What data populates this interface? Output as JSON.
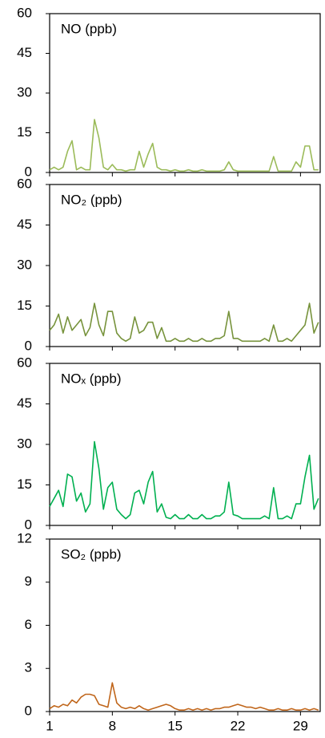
{
  "chart_data": [
    {
      "type": "line",
      "title": "NO (ppb)",
      "color": "#9bbb59",
      "x": [
        1,
        1.5,
        2,
        2.5,
        3,
        3.5,
        4,
        4.5,
        5,
        5.5,
        6,
        6.5,
        7,
        7.5,
        8,
        8.5,
        9,
        9.5,
        10,
        10.5,
        11,
        11.5,
        12,
        12.5,
        13,
        13.5,
        14,
        14.5,
        15,
        15.5,
        16,
        16.5,
        17,
        17.5,
        18,
        18.5,
        19,
        19.5,
        20,
        20.5,
        21,
        21.5,
        22,
        22.5,
        23,
        23.5,
        24,
        24.5,
        25,
        25.5,
        26,
        26.5,
        27,
        27.5,
        28,
        28.5,
        29,
        29.5,
        30,
        30.5,
        31
      ],
      "values": [
        1,
        2,
        1,
        2,
        8,
        12,
        1,
        2,
        1,
        1,
        20,
        13,
        2,
        1,
        3,
        1,
        1,
        0.5,
        1,
        1,
        8,
        2,
        7,
        11,
        2,
        1,
        1,
        0.5,
        1,
        0.5,
        0.5,
        1,
        0.5,
        0.5,
        1,
        0.5,
        0.5,
        0.5,
        0.5,
        1,
        4,
        1,
        0.5,
        0.5,
        0.5,
        0.5,
        0.5,
        0.5,
        0.5,
        0.5,
        6,
        0.5,
        0.5,
        0.5,
        0.5,
        4,
        2,
        10,
        10,
        1,
        1
      ],
      "xlim": [
        1,
        31.2
      ],
      "xticks": [
        1,
        8,
        15,
        22,
        29
      ],
      "ylim": [
        0,
        60
      ],
      "yticks": [
        0,
        15,
        30,
        45,
        60
      ]
    },
    {
      "type": "line",
      "title": "NO₂ (ppb)",
      "color": "#77933c",
      "x": [
        1,
        1.5,
        2,
        2.5,
        3,
        3.5,
        4,
        4.5,
        5,
        5.5,
        6,
        6.5,
        7,
        7.5,
        8,
        8.5,
        9,
        9.5,
        10,
        10.5,
        11,
        11.5,
        12,
        12.5,
        13,
        13.5,
        14,
        14.5,
        15,
        15.5,
        16,
        16.5,
        17,
        17.5,
        18,
        18.5,
        19,
        19.5,
        20,
        20.5,
        21,
        21.5,
        22,
        22.5,
        23,
        23.5,
        24,
        24.5,
        25,
        25.5,
        26,
        26.5,
        27,
        27.5,
        28,
        28.5,
        29,
        29.5,
        30,
        30.5,
        31
      ],
      "values": [
        6,
        8,
        12,
        5,
        11,
        6,
        8,
        10,
        4,
        7,
        16,
        8,
        4,
        13,
        13,
        5,
        3,
        2,
        3,
        11,
        5,
        6,
        9,
        9,
        3,
        7,
        2,
        2,
        3,
        2,
        2,
        3,
        2,
        2,
        3,
        2,
        2,
        3,
        3,
        4,
        13,
        3,
        3,
        2,
        2,
        2,
        2,
        2,
        3,
        2,
        8,
        2,
        2,
        3,
        2,
        4,
        6,
        8,
        16,
        5,
        9
      ],
      "xlim": [
        1,
        31.2
      ],
      "xticks": [
        1,
        8,
        15,
        22,
        29
      ],
      "ylim": [
        0,
        60
      ],
      "yticks": [
        0,
        15,
        30,
        45,
        60
      ]
    },
    {
      "type": "line",
      "title": "NOₓ (ppb)",
      "color": "#00b050",
      "x": [
        1,
        1.5,
        2,
        2.5,
        3,
        3.5,
        4,
        4.5,
        5,
        5.5,
        6,
        6.5,
        7,
        7.5,
        8,
        8.5,
        9,
        9.5,
        10,
        10.5,
        11,
        11.5,
        12,
        12.5,
        13,
        13.5,
        14,
        14.5,
        15,
        15.5,
        16,
        16.5,
        17,
        17.5,
        18,
        18.5,
        19,
        19.5,
        20,
        20.5,
        21,
        21.5,
        22,
        22.5,
        23,
        23.5,
        24,
        24.5,
        25,
        25.5,
        26,
        26.5,
        27,
        27.5,
        28,
        28.5,
        29,
        29.5,
        30,
        30.5,
        31
      ],
      "values": [
        7,
        10,
        13,
        7,
        19,
        18,
        9,
        12,
        5,
        8,
        31,
        21,
        6,
        14,
        16,
        6,
        4,
        2.5,
        4,
        12,
        13,
        8,
        16,
        20,
        5,
        8,
        3,
        2.5,
        4,
        2.5,
        2.5,
        4,
        2.5,
        2.5,
        4,
        2.5,
        2.5,
        3.5,
        3.5,
        5,
        16,
        4,
        3.5,
        2.5,
        2.5,
        2.5,
        2.5,
        2.5,
        3.5,
        2.5,
        14,
        2.5,
        2.5,
        3.5,
        2.5,
        8,
        8,
        18,
        26,
        6,
        10
      ],
      "xlim": [
        1,
        31.2
      ],
      "xticks": [
        1,
        8,
        15,
        22,
        29
      ],
      "ylim": [
        0,
        60
      ],
      "yticks": [
        0,
        15,
        30,
        45,
        60
      ]
    },
    {
      "type": "line",
      "title": "SO₂ (ppb)",
      "color": "#c0661b",
      "x": [
        1,
        1.5,
        2,
        2.5,
        3,
        3.5,
        4,
        4.5,
        5,
        5.5,
        6,
        6.5,
        7,
        7.5,
        8,
        8.5,
        9,
        9.5,
        10,
        10.5,
        11,
        11.5,
        12,
        12.5,
        13,
        13.5,
        14,
        14.5,
        15,
        15.5,
        16,
        16.5,
        17,
        17.5,
        18,
        18.5,
        19,
        19.5,
        20,
        20.5,
        21,
        21.5,
        22,
        22.5,
        23,
        23.5,
        24,
        24.5,
        25,
        25.5,
        26,
        26.5,
        27,
        27.5,
        28,
        28.5,
        29,
        29.5,
        30,
        30.5,
        31
      ],
      "values": [
        0.2,
        0.4,
        0.3,
        0.5,
        0.4,
        0.8,
        0.6,
        1.0,
        1.2,
        1.2,
        1.1,
        0.5,
        0.4,
        0.3,
        2.0,
        0.6,
        0.3,
        0.2,
        0.3,
        0.2,
        0.4,
        0.2,
        0.1,
        0.2,
        0.3,
        0.4,
        0.5,
        0.4,
        0.2,
        0.1,
        0.1,
        0.2,
        0.1,
        0.2,
        0.1,
        0.2,
        0.1,
        0.2,
        0.2,
        0.3,
        0.3,
        0.4,
        0.5,
        0.4,
        0.3,
        0.3,
        0.2,
        0.3,
        0.2,
        0.1,
        0.1,
        0.2,
        0.1,
        0.1,
        0.2,
        0.1,
        0.1,
        0.2,
        0.1,
        0.2,
        0.1
      ],
      "xlim": [
        1,
        31.2
      ],
      "xticks": [
        1,
        8,
        15,
        22,
        29
      ],
      "xtick_labels": true,
      "ylim": [
        0,
        12
      ],
      "yticks": [
        0,
        3,
        6,
        9,
        12
      ]
    }
  ]
}
